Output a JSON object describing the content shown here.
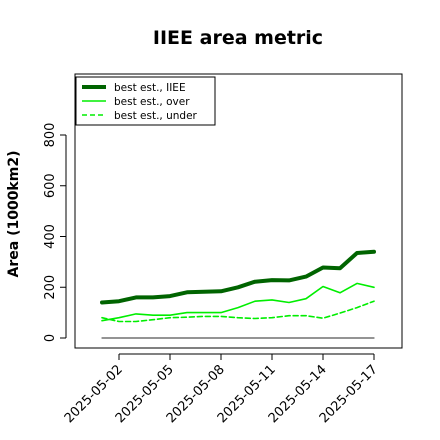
{
  "chart_data": {
    "type": "line",
    "title": "IIEE area metric",
    "xlabel": "",
    "ylabel": "Area (1000km2)",
    "x": [
      "2025-05-01",
      "2025-05-02",
      "2025-05-03",
      "2025-05-04",
      "2025-05-05",
      "2025-05-06",
      "2025-05-07",
      "2025-05-08",
      "2025-05-09",
      "2025-05-10",
      "2025-05-11",
      "2025-05-12",
      "2025-05-13",
      "2025-05-14",
      "2025-05-15",
      "2025-05-16",
      "2025-05-17"
    ],
    "x_tick_labels": [
      "2025-05-02",
      "2025-05-05",
      "2025-05-08",
      "2025-05-11",
      "2025-05-14",
      "2025-05-17"
    ],
    "y_ticks": [
      0,
      200,
      400,
      600,
      800
    ],
    "ylim": [
      -15,
      820
    ],
    "grid": false,
    "legend_position": "top-left",
    "series": [
      {
        "name": "best est., IIEE",
        "color": "#006400",
        "style": "solid-thick",
        "values": [
          140,
          145,
          160,
          160,
          165,
          180,
          182,
          184,
          200,
          222,
          228,
          227,
          242,
          278,
          275,
          335,
          340
        ]
      },
      {
        "name": "best est., over",
        "color": "#00ee00",
        "style": "solid",
        "values": [
          68,
          80,
          95,
          90,
          90,
          100,
          100,
          100,
          120,
          145,
          150,
          140,
          155,
          203,
          178,
          215,
          200
        ]
      },
      {
        "name": "best est., under",
        "color": "#00ee00",
        "style": "dashed",
        "values": [
          80,
          65,
          65,
          72,
          80,
          82,
          85,
          85,
          80,
          77,
          80,
          88,
          88,
          78,
          98,
          120,
          145
        ]
      },
      {
        "name": "",
        "color": "#555555",
        "style": "thin",
        "values": [
          0,
          0,
          0,
          0,
          0,
          0,
          0,
          0,
          0,
          0,
          0,
          0,
          0,
          0,
          0,
          0,
          0
        ]
      }
    ]
  }
}
